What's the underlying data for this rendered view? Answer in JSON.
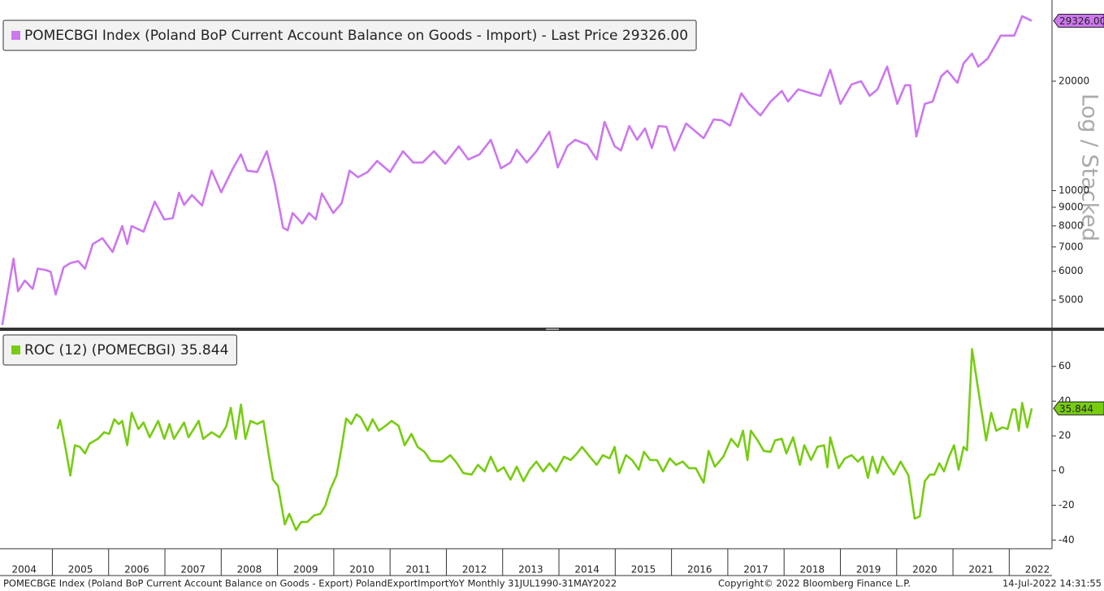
{
  "chart_data": [
    {
      "type": "line",
      "log_scale": true,
      "scale_label": "Log / Stacked",
      "x": [
        2004.11,
        2004.31,
        2004.39,
        2004.51,
        2004.65,
        2004.74,
        2004.88,
        2004.97,
        2005.06,
        2005.2,
        2005.32,
        2005.46,
        2005.58,
        2005.72,
        2005.89,
        2006.07,
        2006.24,
        2006.33,
        2006.41,
        2006.62,
        2006.82,
        2006.99,
        2007.14,
        2007.25,
        2007.34,
        2007.48,
        2007.66,
        2007.83,
        2008.0,
        2008.2,
        2008.35,
        2008.46,
        2008.64,
        2008.81,
        2008.95,
        2009.1,
        2009.18,
        2009.27,
        2009.44,
        2009.56,
        2009.68,
        2009.79,
        2009.99,
        2010.14,
        2010.28,
        2010.43,
        2010.6,
        2010.77,
        2011.0,
        2011.23,
        2011.41,
        2011.58,
        2011.78,
        2011.98,
        2012.22,
        2012.39,
        2012.59,
        2012.79,
        2012.97,
        2013.14,
        2013.25,
        2013.43,
        2013.6,
        2013.83,
        2013.98,
        2014.15,
        2014.29,
        2014.5,
        2014.67,
        2014.81,
        2014.99,
        2015.1,
        2015.25,
        2015.39,
        2015.53,
        2015.65,
        2015.77,
        2015.91,
        2016.05,
        2016.26,
        2016.43,
        2016.57,
        2016.75,
        2016.89,
        2017.04,
        2017.24,
        2017.38,
        2017.58,
        2017.76,
        2017.96,
        2018.07,
        2018.25,
        2018.48,
        2018.65,
        2018.82,
        2019.0,
        2019.2,
        2019.37,
        2019.52,
        2019.66,
        2019.83,
        2020.01,
        2020.15,
        2020.24,
        2020.35,
        2020.5,
        2020.64,
        2020.79,
        2020.9,
        2021.08,
        2021.19,
        2021.34,
        2021.45,
        2021.62,
        2021.85,
        2022.09,
        2022.23,
        2022.4
      ],
      "series": [
        {
          "name": "POMECBGI Index (Poland BoP Current Account Balance on Goods - Import) - Last Price 29326.00",
          "color": "#cc77ee",
          "values": [
            4270,
            6500,
            5290,
            5660,
            5370,
            6100,
            6050,
            5980,
            5180,
            6150,
            6320,
            6400,
            6100,
            7130,
            7400,
            6780,
            7990,
            7130,
            7990,
            7710,
            9330,
            8330,
            8400,
            9870,
            9140,
            9720,
            9100,
            11350,
            9900,
            11450,
            12580,
            11350,
            11250,
            12840,
            10500,
            7910,
            7780,
            8680,
            8120,
            8680,
            8330,
            9820,
            8680,
            9240,
            11350,
            10890,
            11250,
            12070,
            11250,
            12840,
            11950,
            11950,
            12840,
            11850,
            13250,
            12180,
            12580,
            13800,
            11520,
            11950,
            12960,
            11950,
            12840,
            14530,
            11580,
            13250,
            13800,
            13380,
            12180,
            15460,
            13250,
            12900,
            15060,
            13800,
            14830,
            13100,
            15060,
            14980,
            12900,
            15300,
            14530,
            13940,
            15700,
            15620,
            15090,
            18520,
            17320,
            16100,
            17580,
            18800,
            17580,
            19000,
            18520,
            18230,
            21500,
            17320,
            19600,
            20000,
            18230,
            19000,
            21940,
            17320,
            19500,
            19500,
            14090,
            17320,
            17580,
            20620,
            21380,
            19790,
            22400,
            23820,
            21940,
            23100,
            26700,
            26700,
            30200,
            29326
          ],
          "last_value_label": "29326.00"
        }
      ],
      "xlim": [
        2004.07,
        2022.76
      ],
      "ylim": [
        4200,
        32600
      ],
      "yticks": [
        5000,
        6000,
        7000,
        8000,
        9000,
        10000,
        20000
      ]
    },
    {
      "type": "line",
      "x": [
        2005.09,
        2005.14,
        2005.23,
        2005.32,
        2005.4,
        2005.49,
        2005.58,
        2005.66,
        2005.81,
        2005.92,
        2006.01,
        2006.1,
        2006.18,
        2006.24,
        2006.33,
        2006.41,
        2006.53,
        2006.62,
        2006.73,
        2006.88,
        2006.99,
        2007.08,
        2007.16,
        2007.34,
        2007.42,
        2007.6,
        2007.68,
        2007.83,
        2007.97,
        2008.09,
        2008.17,
        2008.26,
        2008.35,
        2008.43,
        2008.52,
        2008.64,
        2008.75,
        2008.84,
        2008.92,
        2009.01,
        2009.13,
        2009.21,
        2009.33,
        2009.42,
        2009.53,
        2009.65,
        2009.76,
        2009.85,
        2009.94,
        2010.05,
        2010.14,
        2010.22,
        2010.31,
        2010.4,
        2010.48,
        2010.6,
        2010.69,
        2010.8,
        2010.92,
        2011.03,
        2011.15,
        2011.26,
        2011.38,
        2011.49,
        2011.61,
        2011.72,
        2011.93,
        2012.07,
        2012.19,
        2012.3,
        2012.45,
        2012.56,
        2012.68,
        2012.79,
        2012.91,
        2013.02,
        2013.14,
        2013.25,
        2013.37,
        2013.48,
        2013.6,
        2013.72,
        2013.83,
        2013.95,
        2014.09,
        2014.21,
        2014.32,
        2014.41,
        2014.55,
        2014.67,
        2014.78,
        2014.9,
        2014.99,
        2015.07,
        2015.19,
        2015.3,
        2015.42,
        2015.51,
        2015.62,
        2015.74,
        2015.85,
        2015.97,
        2016.08,
        2016.2,
        2016.31,
        2016.43,
        2016.57,
        2016.66,
        2016.77,
        2016.92,
        2017.06,
        2017.18,
        2017.27,
        2017.35,
        2017.41,
        2017.53,
        2017.64,
        2017.76,
        2017.84,
        2017.96,
        2018.04,
        2018.16,
        2018.28,
        2018.36,
        2018.48,
        2018.59,
        2018.71,
        2018.77,
        2018.82,
        2018.97,
        2019.08,
        2019.2,
        2019.31,
        2019.4,
        2019.49,
        2019.57,
        2019.66,
        2019.75,
        2019.86,
        2019.95,
        2020.07,
        2020.21,
        2020.32,
        2020.41,
        2020.5,
        2020.59,
        2020.67,
        2020.76,
        2020.84,
        2020.93,
        2021.02,
        2021.1,
        2021.19,
        2021.25,
        2021.34,
        2021.45,
        2021.54,
        2021.59,
        2021.68,
        2021.77,
        2021.88,
        2021.97,
        2022.06,
        2022.11,
        2022.17,
        2022.23,
        2022.32,
        2022.4
      ],
      "series": [
        {
          "name": "ROC (12) (POMECBGI) 35.844",
          "color": "#77cc11",
          "values": [
            23.9,
            29.1,
            13.6,
            -2.8,
            14.6,
            13.6,
            9.9,
            15.5,
            18.3,
            22.1,
            21.1,
            29.6,
            26.8,
            28.6,
            14.6,
            33.3,
            23.9,
            27.7,
            19.2,
            28.6,
            18.3,
            26.8,
            18.3,
            27.7,
            19.2,
            28.6,
            18.3,
            22.1,
            19.2,
            25.4,
            36.2,
            18.3,
            38.0,
            18.3,
            28.6,
            26.8,
            28.6,
            9.9,
            -5.2,
            -8.9,
            -31.0,
            -24.9,
            -34.3,
            -29.6,
            -29.6,
            -25.8,
            -24.9,
            -20.2,
            -10.8,
            -2.8,
            13.6,
            30.0,
            26.8,
            32.4,
            30.5,
            23.0,
            29.6,
            23.0,
            25.8,
            28.6,
            25.8,
            14.6,
            21.1,
            13.6,
            10.8,
            5.6,
            5.2,
            8.9,
            4.2,
            -1.4,
            -2.3,
            3.3,
            -0.5,
            8.0,
            -0.5,
            1.9,
            -5.2,
            2.3,
            -6.1,
            0.5,
            5.2,
            -0.5,
            4.2,
            -0.5,
            8.0,
            6.1,
            9.9,
            13.6,
            8.0,
            3.3,
            8.9,
            7.0,
            13.6,
            -1.4,
            8.9,
            6.1,
            0.5,
            10.8,
            6.1,
            6.1,
            -0.5,
            7.0,
            3.3,
            5.2,
            1.4,
            1.4,
            -7.0,
            11.3,
            2.3,
            8.0,
            18.3,
            13.6,
            23.0,
            6.1,
            23.0,
            17.4,
            11.3,
            10.8,
            17.4,
            18.3,
            9.9,
            19.2,
            3.3,
            14.6,
            6.1,
            13.6,
            14.6,
            1.9,
            19.2,
            1.4,
            7.0,
            8.9,
            5.2,
            8.0,
            -4.2,
            8.0,
            -1.4,
            8.0,
            1.9,
            -2.3,
            5.2,
            -2.8,
            -27.7,
            -26.3,
            -6.1,
            -2.3,
            -2.3,
            4.2,
            -0.5,
            8.0,
            14.6,
            0.5,
            13.6,
            11.7,
            70.0,
            46.5,
            27.7,
            17.4,
            33.3,
            23.0,
            24.9,
            23.9,
            35.2,
            35.2,
            23.0,
            39.0,
            24.9,
            35.844
          ],
          "last_value_label": "35.844"
        }
      ],
      "xlim": [
        2004.07,
        2022.76
      ],
      "xticks": [
        2004,
        2005,
        2006,
        2007,
        2008,
        2009,
        2010,
        2011,
        2012,
        2013,
        2014,
        2015,
        2016,
        2017,
        2018,
        2019,
        2020,
        2021,
        2022
      ],
      "ylim": [
        -45,
        80
      ],
      "yticks": [
        -40,
        -20,
        0,
        20,
        40,
        60
      ]
    }
  ],
  "footer": {
    "left": "POMECBGE Index (Poland BoP Current Account Balance on Goods - Export) PolandExportImportYoY  Monthly 31JUL1990-31MAY2022",
    "copyright": "Copyright© 2022 Bloomberg Finance L.P.",
    "timestamp": "14-Jul-2022 14:31:55"
  }
}
